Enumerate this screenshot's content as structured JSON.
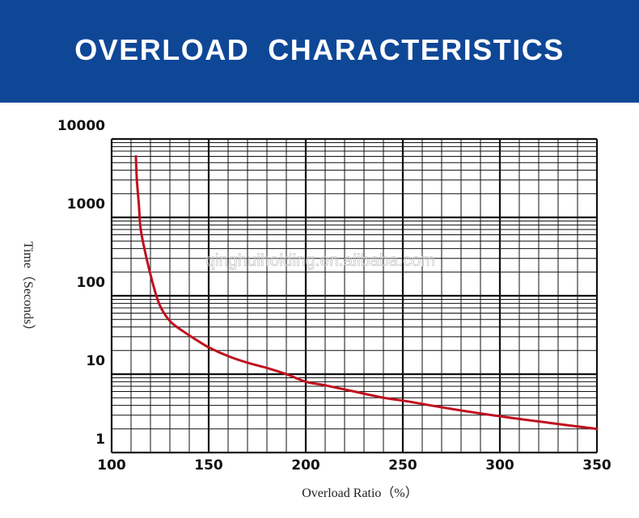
{
  "banner": {
    "title": "OVERLOAD  CHARACTERISTICS"
  },
  "watermark": "qinghuiholding.en.alibaba.com",
  "colors": {
    "banner": "#0f4797",
    "curve": "#c0101e",
    "grid": "#111111"
  },
  "chart_data": {
    "type": "line",
    "title": "OVERLOAD  CHARACTERISTICS",
    "xlabel": "Overload Ratio（%）",
    "ylabel": "Time（Seconds）",
    "xlim": [
      100,
      350
    ],
    "ylim": [
      1,
      10000
    ],
    "yscale": "log",
    "grid": true,
    "x_ticks": [
      "100",
      "150",
      "200",
      "250",
      "300",
      "350"
    ],
    "y_ticks": [
      "1",
      "10",
      "100",
      "1000",
      "10000"
    ],
    "series": [
      {
        "values": [
          [
            112.5,
            6000
          ],
          [
            113,
            3000
          ],
          [
            114,
            1500
          ],
          [
            115,
            700
          ],
          [
            118,
            300
          ],
          [
            121,
            150
          ],
          [
            124,
            85
          ],
          [
            127,
            60
          ],
          [
            131,
            45
          ],
          [
            137,
            35
          ],
          [
            143,
            28
          ],
          [
            150,
            22
          ],
          [
            160,
            17
          ],
          [
            170,
            14
          ],
          [
            180,
            12
          ],
          [
            190,
            10
          ],
          [
            200,
            8
          ],
          [
            210,
            7.2
          ],
          [
            225,
            6
          ],
          [
            240,
            5
          ],
          [
            250,
            4.6
          ],
          [
            275,
            3.6
          ],
          [
            300,
            2.9
          ],
          [
            325,
            2.4
          ],
          [
            350,
            2.0
          ]
        ]
      }
    ]
  }
}
